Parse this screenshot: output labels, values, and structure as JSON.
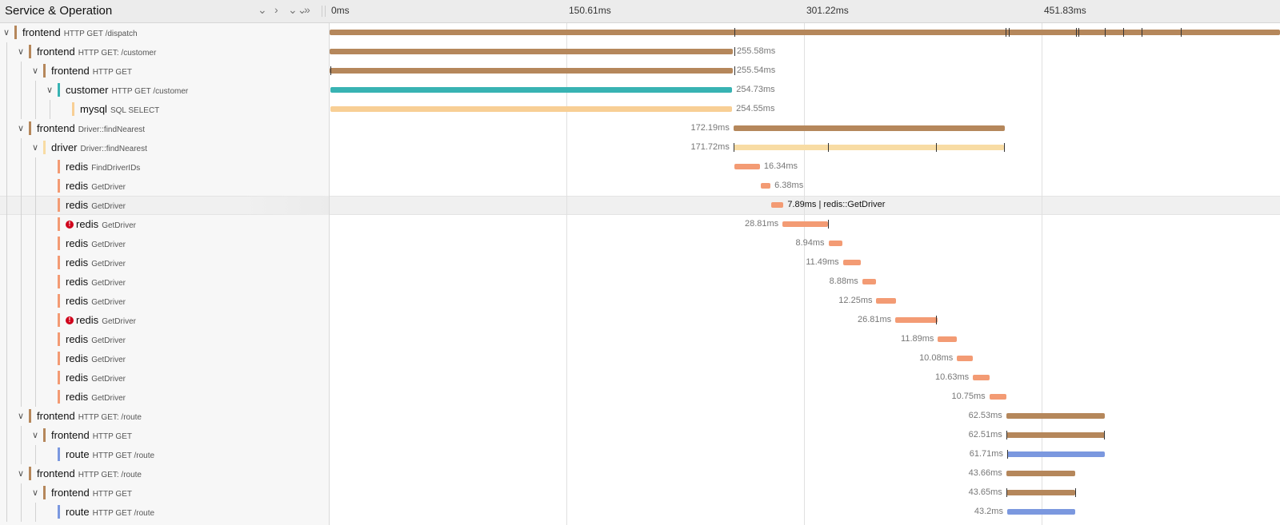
{
  "header": {
    "title": "Service & Operation",
    "ticks": [
      "0ms",
      "150.61ms",
      "301.22ms",
      "451.83ms"
    ]
  },
  "colors": {
    "frontend": "#b5875b",
    "customer": "#38b3b3",
    "mysql": "#f8cf95",
    "driver": "#f8dca4",
    "redis": "#f39b74",
    "route": "#7b98df",
    "error": "#d0021b"
  },
  "timeline": {
    "total_ms": 602.44,
    "hovered_row": 9
  },
  "spans": [
    {
      "service": "frontend",
      "operation": "HTTP GET /dispatch",
      "depth": 0,
      "toggle": "v",
      "start": 0,
      "duration": 602.44,
      "duration_label": "",
      "error": false,
      "logs": [
        256.6,
        428.6,
        430.6,
        473.3,
        474.8,
        491.4,
        503.1,
        514.8,
        539.8
      ]
    },
    {
      "service": "frontend",
      "operation": "HTTP GET: /customer",
      "depth": 1,
      "toggle": "v",
      "start": 0,
      "duration": 255.58,
      "duration_label": "255.58ms",
      "error": false,
      "logs": [
        256.6
      ]
    },
    {
      "service": "frontend",
      "operation": "HTTP GET",
      "depth": 2,
      "toggle": "v",
      "start": 0,
      "duration": 255.54,
      "duration_label": "255.54ms",
      "error": false,
      "logs": [
        0.5,
        256.6
      ]
    },
    {
      "service": "customer",
      "operation": "HTTP GET /customer",
      "depth": 3,
      "toggle": "v",
      "start": 0.5,
      "duration": 254.73,
      "duration_label": "254.73ms",
      "error": false,
      "logs": []
    },
    {
      "service": "mysql",
      "operation": "SQL SELECT",
      "depth": 4,
      "toggle": "",
      "start": 0.6,
      "duration": 254.55,
      "duration_label": "254.55ms",
      "error": false,
      "logs": []
    },
    {
      "service": "frontend",
      "operation": "Driver::findNearest",
      "depth": 1,
      "toggle": "v",
      "start": 256.0,
      "duration": 172.19,
      "duration_label": "172.19ms",
      "error": false,
      "logs": []
    },
    {
      "service": "driver",
      "operation": "Driver::findNearest",
      "depth": 2,
      "toggle": "v",
      "start": 256.0,
      "duration": 171.72,
      "duration_label": "171.72ms",
      "error": false,
      "logs": [
        256.3,
        315.7,
        384.6,
        427.5
      ]
    },
    {
      "service": "redis",
      "operation": "FindDriverIDs",
      "depth": 3,
      "toggle": "",
      "start": 256.4,
      "duration": 16.34,
      "duration_label": "16.34ms",
      "error": false,
      "logs": []
    },
    {
      "service": "redis",
      "operation": "GetDriver",
      "depth": 3,
      "toggle": "",
      "start": 273.1,
      "duration": 6.38,
      "duration_label": "6.38ms",
      "error": false,
      "logs": []
    },
    {
      "service": "redis",
      "operation": "GetDriver",
      "depth": 3,
      "toggle": "",
      "start": 279.8,
      "duration": 7.89,
      "duration_label": "7.89ms | redis::GetDriver",
      "error": false,
      "logs": []
    },
    {
      "service": "redis",
      "operation": "GetDriver",
      "depth": 3,
      "toggle": "",
      "start": 287.1,
      "duration": 28.81,
      "duration_label": "28.81ms",
      "error": true,
      "logs": [
        315.7
      ]
    },
    {
      "service": "redis",
      "operation": "GetDriver",
      "depth": 3,
      "toggle": "",
      "start": 316.2,
      "duration": 8.94,
      "duration_label": "8.94ms",
      "error": false,
      "logs": []
    },
    {
      "service": "redis",
      "operation": "GetDriver",
      "depth": 3,
      "toggle": "",
      "start": 325.4,
      "duration": 11.49,
      "duration_label": "11.49ms",
      "error": false,
      "logs": []
    },
    {
      "service": "redis",
      "operation": "GetDriver",
      "depth": 3,
      "toggle": "",
      "start": 337.6,
      "duration": 8.88,
      "duration_label": "8.88ms",
      "error": false,
      "logs": []
    },
    {
      "service": "redis",
      "operation": "GetDriver",
      "depth": 3,
      "toggle": "",
      "start": 346.6,
      "duration": 12.25,
      "duration_label": "12.25ms",
      "error": false,
      "logs": []
    },
    {
      "service": "redis",
      "operation": "GetDriver",
      "depth": 3,
      "toggle": "",
      "start": 358.6,
      "duration": 26.81,
      "duration_label": "26.81ms",
      "error": true,
      "logs": [
        384.6
      ]
    },
    {
      "service": "redis",
      "operation": "GetDriver",
      "depth": 3,
      "toggle": "",
      "start": 385.6,
      "duration": 11.89,
      "duration_label": "11.89ms",
      "error": false,
      "logs": []
    },
    {
      "service": "redis",
      "operation": "GetDriver",
      "depth": 3,
      "toggle": "",
      "start": 397.7,
      "duration": 10.08,
      "duration_label": "10.08ms",
      "error": false,
      "logs": []
    },
    {
      "service": "redis",
      "operation": "GetDriver",
      "depth": 3,
      "toggle": "",
      "start": 407.8,
      "duration": 10.63,
      "duration_label": "10.63ms",
      "error": false,
      "logs": []
    },
    {
      "service": "redis",
      "operation": "GetDriver",
      "depth": 3,
      "toggle": "",
      "start": 418.2,
      "duration": 10.75,
      "duration_label": "10.75ms",
      "error": false,
      "logs": []
    },
    {
      "service": "frontend",
      "operation": "HTTP GET: /route",
      "depth": 1,
      "toggle": "v",
      "start": 428.9,
      "duration": 62.53,
      "duration_label": "62.53ms",
      "error": false,
      "logs": []
    },
    {
      "service": "frontend",
      "operation": "HTTP GET",
      "depth": 2,
      "toggle": "v",
      "start": 428.9,
      "duration": 62.51,
      "duration_label": "62.51ms",
      "error": false,
      "logs": [
        429.2,
        491.0
      ]
    },
    {
      "service": "route",
      "operation": "HTTP GET /route",
      "depth": 3,
      "toggle": "",
      "start": 429.5,
      "duration": 61.71,
      "duration_label": "61.71ms",
      "error": false,
      "logs": [
        429.5
      ]
    },
    {
      "service": "frontend",
      "operation": "HTTP GET: /route",
      "depth": 1,
      "toggle": "v",
      "start": 428.9,
      "duration": 43.66,
      "duration_label": "43.66ms",
      "error": false,
      "logs": []
    },
    {
      "service": "frontend",
      "operation": "HTTP GET",
      "depth": 2,
      "toggle": "v",
      "start": 428.9,
      "duration": 43.65,
      "duration_label": "43.65ms",
      "error": false,
      "logs": [
        429.2,
        472.5
      ]
    },
    {
      "service": "route",
      "operation": "HTTP GET /route",
      "depth": 3,
      "toggle": "",
      "start": 429.5,
      "duration": 43.2,
      "duration_label": "43.2ms",
      "error": false,
      "logs": []
    }
  ]
}
